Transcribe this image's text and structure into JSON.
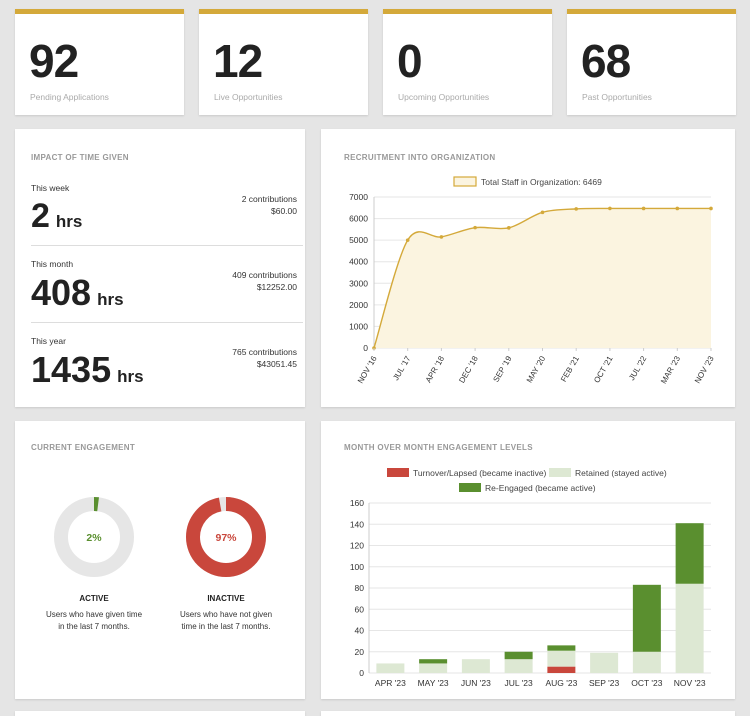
{
  "stats": [
    {
      "value": "92",
      "label": "Pending Applications"
    },
    {
      "value": "12",
      "label": "Live Opportunities"
    },
    {
      "value": "0",
      "label": "Upcoming Opportunities"
    },
    {
      "value": "68",
      "label": "Past Opportunities"
    }
  ],
  "impact": {
    "title": "IMPACT OF TIME GIVEN",
    "rows": [
      {
        "period": "This week",
        "hours": "2",
        "unit": "hrs",
        "contributions": "2 contributions",
        "amount": "$60.00"
      },
      {
        "period": "This month",
        "hours": "408",
        "unit": "hrs",
        "contributions": "409 contributions",
        "amount": "$12252.00"
      },
      {
        "period": "This year",
        "hours": "1435",
        "unit": "hrs",
        "contributions": "765 contributions",
        "amount": "$43051.45"
      }
    ]
  },
  "engagement": {
    "title": "CURRENT ENGAGEMENT",
    "active": {
      "percent": "2%",
      "fraction": 0.02,
      "label": "ACTIVE",
      "desc_line1": "Users who have given time",
      "desc_line2": "in the last 7 months.",
      "color": "#5a8f2f"
    },
    "inactive": {
      "percent": "97%",
      "fraction": 0.97,
      "label": "INACTIVE",
      "desc_line1": "Users who have not given",
      "desc_line2": "time in the last 7 months.",
      "color": "#c9473c"
    }
  },
  "chart_data": [
    {
      "type": "area",
      "title": "RECRUITMENT INTO ORGANIZATION",
      "legend": [
        "Total Staff in Organization: 6469"
      ],
      "legend_position": "top",
      "color": "#d4a93a",
      "x": [
        "NOV '16",
        "JUL '17",
        "APR '18",
        "DEC '18",
        "SEP '19",
        "MAY '20",
        "FEB '21",
        "OCT '21",
        "JUL '22",
        "MAR '23",
        "NOV '23"
      ],
      "values": [
        0,
        5000,
        5150,
        5580,
        5570,
        6290,
        6450,
        6470,
        6469,
        6469,
        6469
      ],
      "ylim": [
        0,
        7000
      ],
      "yticks": [
        "0",
        "1000",
        "2000",
        "3000",
        "4000",
        "5000",
        "6000",
        "7000"
      ],
      "grid": true
    },
    {
      "type": "bar",
      "stacked": true,
      "title": "MONTH OVER MONTH ENGAGEMENT LEVELS",
      "legend_position": "top",
      "categories": [
        "APR '23",
        "MAY '23",
        "JUN '23",
        "JUL '23",
        "AUG '23",
        "SEP '23",
        "OCT '23",
        "NOV '23"
      ],
      "series": [
        {
          "name": "Turnover/Lapsed (became inactive)",
          "color": "#c9473c",
          "values": [
            0,
            0,
            0,
            0,
            6,
            0,
            0,
            0
          ]
        },
        {
          "name": "Retained (stayed active)",
          "color": "#dde8d3",
          "values": [
            9,
            9,
            13,
            13,
            15,
            19,
            20,
            84
          ]
        },
        {
          "name": "Re-Engaged (became active)",
          "color": "#5a8f2f",
          "values": [
            0,
            4,
            0,
            7,
            5,
            0,
            63,
            57
          ]
        }
      ],
      "ylim": [
        0,
        160
      ],
      "yticks": [
        "0",
        "20",
        "40",
        "60",
        "80",
        "100",
        "120",
        "140",
        "160"
      ],
      "grid": true
    }
  ]
}
